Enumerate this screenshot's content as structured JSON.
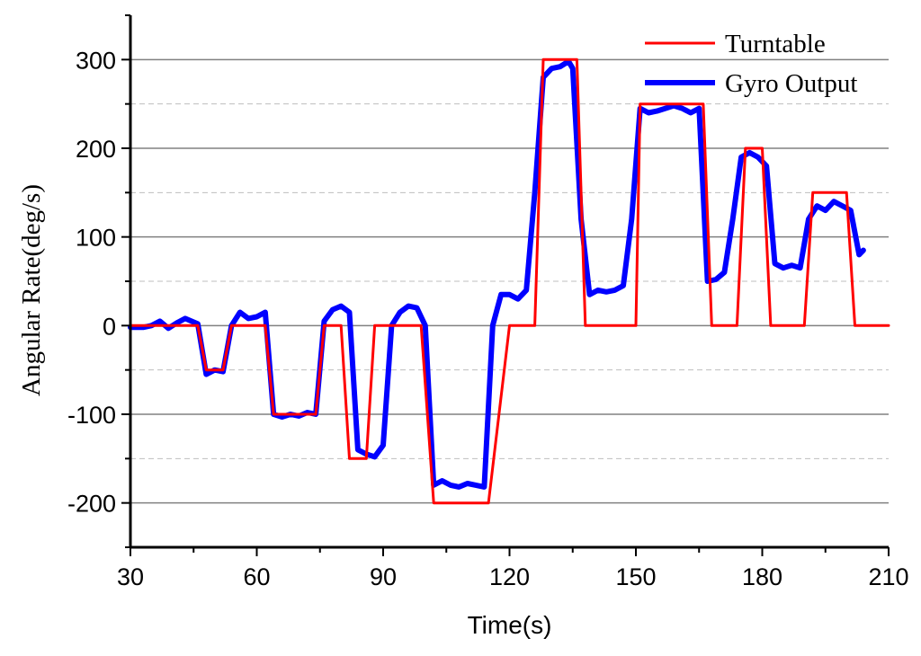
{
  "chart_data": {
    "type": "line",
    "title": "",
    "xlabel": "Time(s)",
    "ylabel": "Angular Rate(deg/s)",
    "xlim": [
      30,
      210
    ],
    "ylim": [
      -250,
      350
    ],
    "x_ticks": [
      30,
      60,
      90,
      120,
      150,
      180,
      210
    ],
    "y_ticks": [
      -200,
      -100,
      0,
      100,
      200,
      300
    ],
    "x_minor_step": 15,
    "y_minor_step": 50,
    "grid": "horizontal-major-solid-minor-dashed",
    "legend_position": "top-right",
    "colors": {
      "Turntable": "#ff0000",
      "Gyro Output": "#0000ff",
      "major_grid": "#808080",
      "minor_grid": "#bfbfbf"
    },
    "series": [
      {
        "name": "Turntable",
        "x": [
          30,
          46,
          48,
          52,
          54,
          62,
          64,
          74,
          76,
          80,
          82,
          86,
          88,
          92,
          94,
          97,
          99,
          102,
          114,
          115,
          120,
          126,
          128,
          136,
          138,
          141,
          150,
          151,
          166,
          168,
          171,
          174,
          176,
          180,
          182,
          185,
          190,
          192,
          200,
          202,
          210
        ],
        "y": [
          0,
          0,
          -50,
          -50,
          0,
          0,
          -100,
          -100,
          0,
          0,
          -150,
          -150,
          0,
          0,
          0,
          0,
          0,
          -200,
          -200,
          -200,
          0,
          0,
          300,
          300,
          0,
          0,
          0,
          250,
          250,
          0,
          0,
          0,
          200,
          200,
          0,
          0,
          0,
          150,
          150,
          0,
          0
        ]
      },
      {
        "name": "Gyro Output",
        "x": [
          30,
          33,
          35,
          37,
          39,
          41,
          43,
          46,
          48,
          50,
          52,
          54,
          56,
          58,
          60,
          62,
          64,
          66,
          68,
          70,
          72,
          74,
          76,
          78,
          80,
          82,
          84,
          86,
          88,
          90,
          92,
          94,
          96,
          98,
          100,
          102,
          104,
          106,
          108,
          110,
          112,
          114,
          116,
          118,
          120,
          122,
          124,
          126,
          128,
          130,
          132,
          134,
          135,
          137,
          139,
          141,
          143,
          145,
          147,
          149,
          151,
          153,
          155,
          157,
          159,
          161,
          163,
          165,
          167,
          169,
          171,
          173,
          175,
          177,
          179,
          181,
          183,
          185,
          187,
          189,
          191,
          193,
          195,
          197,
          199,
          201,
          203,
          204
        ],
        "y": [
          -2,
          -2,
          0,
          5,
          -3,
          3,
          8,
          2,
          -55,
          -50,
          -52,
          0,
          15,
          8,
          10,
          15,
          -100,
          -103,
          -100,
          -102,
          -98,
          -100,
          5,
          18,
          22,
          15,
          -140,
          -145,
          -148,
          -135,
          0,
          15,
          22,
          20,
          0,
          -180,
          -175,
          -180,
          -182,
          -178,
          -180,
          -182,
          0,
          35,
          35,
          30,
          40,
          150,
          280,
          290,
          292,
          298,
          290,
          120,
          35,
          40,
          38,
          40,
          45,
          120,
          245,
          240,
          242,
          245,
          248,
          245,
          240,
          245,
          50,
          52,
          60,
          120,
          190,
          195,
          190,
          180,
          70,
          65,
          68,
          65,
          120,
          135,
          130,
          140,
          135,
          130,
          80,
          85
        ]
      }
    ]
  }
}
